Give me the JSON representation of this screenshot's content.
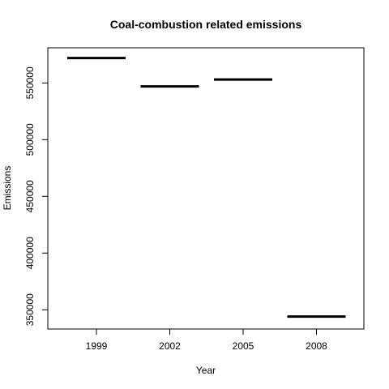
{
  "chart_data": {
    "type": "bar",
    "title": "Coal-combustion related emissions",
    "xlabel": "Year",
    "ylabel": "Emissions",
    "categories": [
      "1999",
      "2002",
      "2005",
      "2008"
    ],
    "values": [
      572000,
      547000,
      553000,
      344000
    ],
    "ylim": [
      333000,
      581000
    ],
    "y_ticks": [
      350000,
      400000,
      450000,
      500000,
      550000
    ],
    "y_tick_labels": [
      "350000",
      "400000",
      "450000",
      "500000",
      "550000"
    ],
    "grid": false,
    "legend": "none",
    "line_color": "#000000"
  }
}
